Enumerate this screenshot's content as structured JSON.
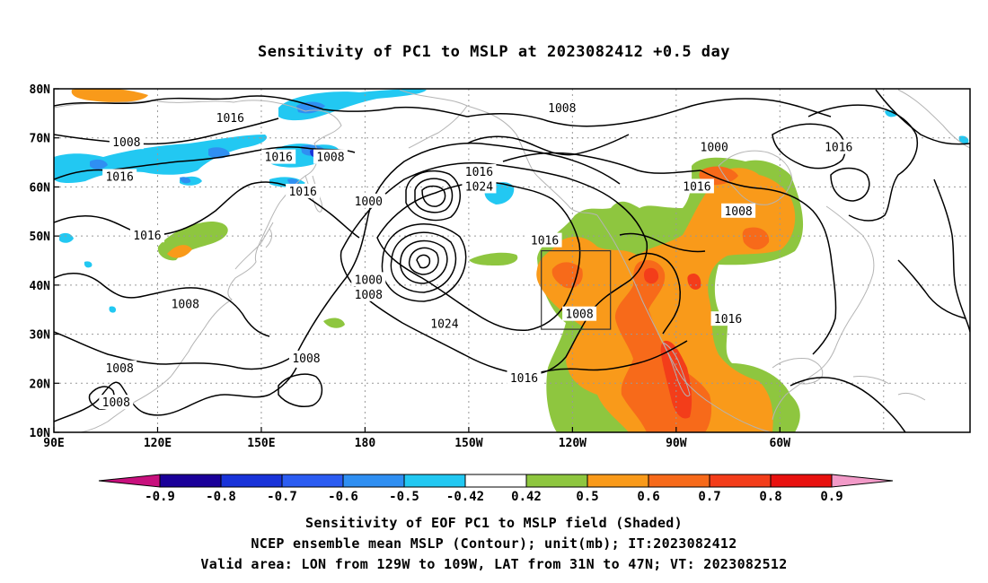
{
  "title": "Sensitivity of PC1 to MSLP at 2023082412 +0.5 day",
  "map": {
    "lon_labels": [
      "90E",
      "120E",
      "150E",
      "180",
      "150W",
      "120W",
      "90W",
      "60W"
    ],
    "lat_labels": [
      "80N",
      "70N",
      "60N",
      "50N",
      "40N",
      "30N",
      "20N",
      "10N"
    ],
    "contour_labels": [
      {
        "text": "1016",
        "lon": 141,
        "lat": 74
      },
      {
        "text": "1016",
        "lon": 155,
        "lat": 66
      },
      {
        "text": "1008",
        "lon": 111,
        "lat": 69
      },
      {
        "text": "1016",
        "lon": 109,
        "lat": 62
      },
      {
        "text": "1016",
        "lon": 162,
        "lat": 59
      },
      {
        "text": "1016",
        "lon": 117,
        "lat": 50
      },
      {
        "text": "1008",
        "lon": 170,
        "lat": 66
      },
      {
        "text": "1000",
        "lon": 181,
        "lat": 57
      },
      {
        "text": "1016",
        "lon": 213,
        "lat": 63
      },
      {
        "text": "1024",
        "lon": 213,
        "lat": 60
      },
      {
        "text": "1000",
        "lon": 181,
        "lat": 41
      },
      {
        "text": "1008",
        "lon": 181,
        "lat": 38
      },
      {
        "text": "1008",
        "lon": 237,
        "lat": 76
      },
      {
        "text": "1000",
        "lon": 281,
        "lat": 68
      },
      {
        "text": "1016",
        "lon": 276,
        "lat": 60
      },
      {
        "text": "1016",
        "lon": 317,
        "lat": 68
      },
      {
        "text": "1008",
        "lon": 288,
        "lat": 55
      },
      {
        "text": "1016",
        "lon": 232,
        "lat": 49
      },
      {
        "text": "1008",
        "lon": 242,
        "lat": 34
      },
      {
        "text": "1024",
        "lon": 203,
        "lat": 32
      },
      {
        "text": "1016",
        "lon": 285,
        "lat": 33
      },
      {
        "text": "1008",
        "lon": 128,
        "lat": 36
      },
      {
        "text": "1008",
        "lon": 163,
        "lat": 25
      },
      {
        "text": "1008",
        "lon": 109,
        "lat": 23
      },
      {
        "text": "1008",
        "lon": 108,
        "lat": 16
      },
      {
        "text": "1016",
        "lon": 226,
        "lat": 21
      }
    ],
    "valid_box": {
      "lon_min": 231,
      "lon_max": 251,
      "lat_min": 31,
      "lat_max": 47
    }
  },
  "colorbar": {
    "labels": [
      "-0.9",
      "-0.8",
      "-0.7",
      "-0.6",
      "-0.5",
      "-0.42",
      "0.42",
      "0.5",
      "0.6",
      "0.7",
      "0.8",
      "0.9"
    ],
    "colors": [
      "#1a0099",
      "#1933d9",
      "#2b5cf2",
      "#2f8ff2",
      "#22c8f2",
      "#ffffff",
      "#8ec63f",
      "#f99a1a",
      "#f76a1a",
      "#f33d1a",
      "#e8110f"
    ],
    "low_end_color": "#c8107d",
    "high_end_color": "#f29ac8"
  },
  "captions": {
    "line1": "Sensitivity of EOF PC1 to MSLP field (Shaded)",
    "line2": "NCEP ensemble mean MSLP (Contour); unit(mb); IT:2023082412",
    "line3": "Valid area: LON from 129W to 109W, LAT from 31N to 47N; VT: 2023082512"
  }
}
